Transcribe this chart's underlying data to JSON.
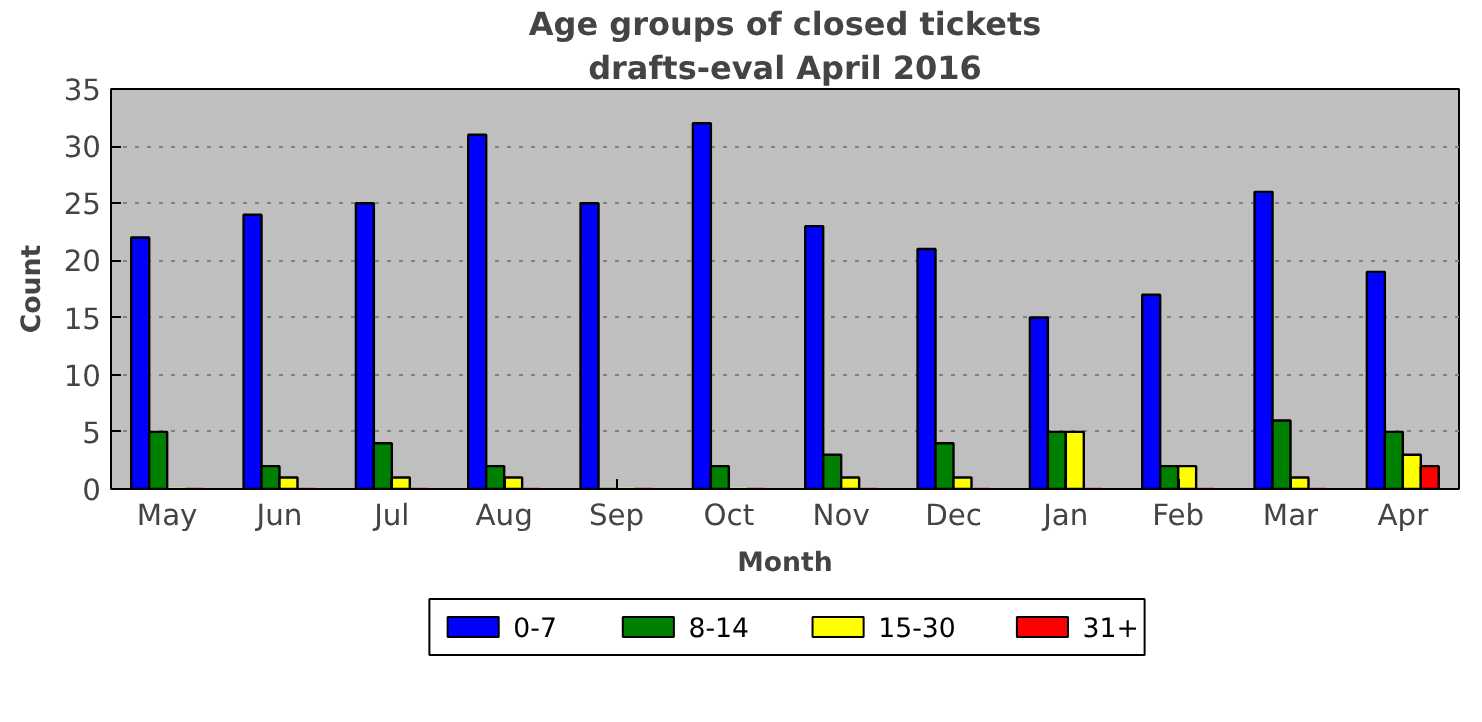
{
  "chart_data": {
    "type": "bar",
    "title": "Age groups of closed tickets",
    "subtitle": "drafts-eval April 2016",
    "xlabel": "Month",
    "ylabel": "Count",
    "categories": [
      "May",
      "Jun",
      "Jul",
      "Aug",
      "Sep",
      "Oct",
      "Nov",
      "Dec",
      "Jan",
      "Feb",
      "Mar",
      "Apr"
    ],
    "series": [
      {
        "name": "0-7",
        "color": "#0000ff",
        "values": [
          22,
          24,
          25,
          31,
          25,
          32,
          23,
          21,
          15,
          17,
          26,
          19
        ]
      },
      {
        "name": "8-14",
        "color": "#008000",
        "values": [
          5,
          2,
          4,
          2,
          0,
          2,
          3,
          4,
          5,
          2,
          6,
          5
        ]
      },
      {
        "name": "15-30",
        "color": "#ffff00",
        "values": [
          0,
          1,
          1,
          1,
          0,
          0,
          1,
          1,
          5,
          2,
          1,
          3
        ]
      },
      {
        "name": "31+",
        "color": "#ff0000",
        "values": [
          0,
          0,
          0,
          0,
          0,
          0,
          0,
          0,
          0,
          0,
          0,
          2
        ]
      }
    ],
    "ylim": [
      0,
      35
    ],
    "yticks": [
      0,
      5,
      10,
      15,
      20,
      25,
      30,
      35
    ],
    "grid": "y",
    "legend": "bottom"
  }
}
